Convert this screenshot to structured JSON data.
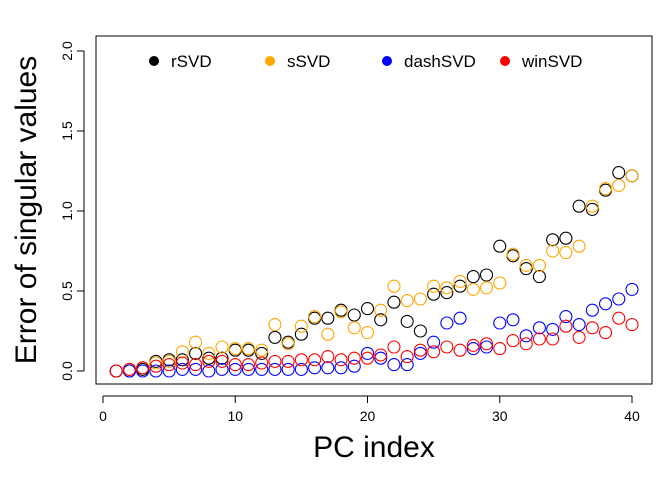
{
  "chart_data": {
    "type": "scatter",
    "xlabel": "PC index",
    "ylabel": "Error of singular values",
    "xlim": [
      0,
      40.5
    ],
    "ylim": [
      -0.05,
      2.05
    ],
    "xticks": [
      0,
      10,
      20,
      30,
      40
    ],
    "yticks": [
      0.0,
      0.5,
      1.0,
      1.5,
      2.0
    ],
    "ytick_labels": [
      "0.0",
      "0.5",
      "1.0",
      "1.5",
      "2.0"
    ],
    "legend_position": "top",
    "grid": false,
    "marker": "open-circle",
    "x": [
      1,
      2,
      3,
      4,
      5,
      6,
      7,
      8,
      9,
      10,
      11,
      12,
      13,
      14,
      15,
      16,
      17,
      18,
      19,
      20,
      21,
      22,
      23,
      24,
      25,
      26,
      27,
      28,
      29,
      30,
      31,
      32,
      33,
      34,
      35,
      36,
      37,
      38,
      39,
      40
    ],
    "series": [
      {
        "name": "rSVD",
        "color": "#000000",
        "values": [
          0.0,
          0.0,
          0.01,
          0.06,
          0.07,
          0.07,
          0.11,
          0.08,
          0.08,
          0.13,
          0.13,
          0.11,
          0.21,
          0.18,
          0.23,
          0.33,
          0.33,
          0.38,
          0.35,
          0.39,
          0.32,
          0.43,
          0.31,
          0.25,
          0.48,
          0.49,
          0.53,
          0.59,
          0.6,
          0.78,
          0.72,
          0.64,
          0.59,
          0.82,
          0.83,
          1.03,
          1.01,
          1.13,
          1.24,
          1.22
        ]
      },
      {
        "name": "sSVD",
        "color": "#FFA500",
        "values": [
          0.0,
          0.01,
          0.02,
          0.05,
          0.06,
          0.12,
          0.18,
          0.11,
          0.15,
          0.14,
          0.14,
          0.13,
          0.29,
          0.17,
          0.28,
          0.34,
          0.23,
          0.37,
          0.27,
          0.24,
          0.38,
          0.53,
          0.44,
          0.45,
          0.53,
          0.52,
          0.56,
          0.51,
          0.52,
          0.55,
          0.73,
          0.66,
          0.66,
          0.75,
          0.74,
          0.78,
          1.03,
          1.14,
          1.16,
          1.22
        ]
      },
      {
        "name": "dashSVD",
        "color": "#0000FF",
        "values": [
          0.0,
          0.0,
          0.0,
          0.0,
          0.0,
          0.01,
          0.01,
          0.0,
          0.01,
          0.01,
          0.01,
          0.01,
          0.01,
          0.01,
          0.01,
          0.02,
          0.02,
          0.02,
          0.03,
          0.11,
          0.08,
          0.04,
          0.04,
          0.11,
          0.18,
          0.3,
          0.33,
          0.14,
          0.15,
          0.3,
          0.32,
          0.22,
          0.27,
          0.26,
          0.34,
          0.29,
          0.38,
          0.42,
          0.45,
          0.51
        ]
      },
      {
        "name": "winSVD",
        "color": "#FF0000",
        "values": [
          0.0,
          0.01,
          0.02,
          0.03,
          0.04,
          0.05,
          0.04,
          0.06,
          0.06,
          0.04,
          0.04,
          0.05,
          0.06,
          0.06,
          0.07,
          0.07,
          0.09,
          0.07,
          0.08,
          0.08,
          0.1,
          0.15,
          0.09,
          0.13,
          0.12,
          0.15,
          0.13,
          0.16,
          0.17,
          0.14,
          0.19,
          0.17,
          0.2,
          0.2,
          0.28,
          0.21,
          0.27,
          0.24,
          0.33,
          0.29
        ]
      }
    ]
  }
}
